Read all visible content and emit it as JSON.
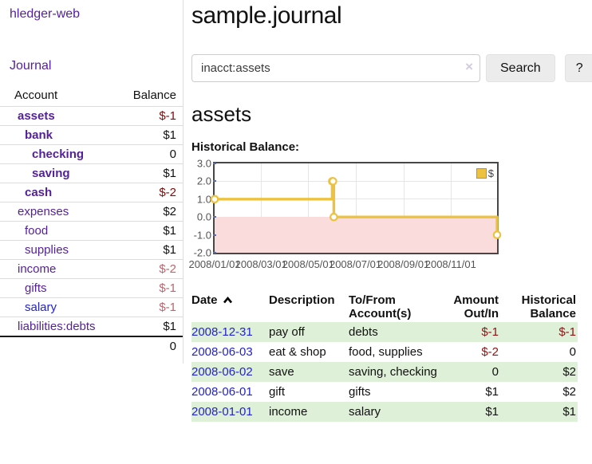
{
  "app": {
    "brand": "hledger-web"
  },
  "sidebar": {
    "journal_link": "Journal",
    "table": {
      "account_header": "Account",
      "balance_header": "Balance",
      "rows": [
        {
          "name": "assets",
          "balance": "$-1"
        },
        {
          "name": "bank",
          "balance": "$1"
        },
        {
          "name": "checking",
          "balance": "0"
        },
        {
          "name": "saving",
          "balance": "$1"
        },
        {
          "name": "cash",
          "balance": "$-2"
        },
        {
          "name": "expenses",
          "balance": "$2"
        },
        {
          "name": "food",
          "balance": "$1"
        },
        {
          "name": "supplies",
          "balance": "$1"
        },
        {
          "name": "income",
          "balance": "$-2"
        },
        {
          "name": "gifts",
          "balance": "$-1"
        },
        {
          "name": "salary",
          "balance": "$-1"
        },
        {
          "name": "liabilities:debts",
          "balance": "$1"
        }
      ],
      "total": "0"
    }
  },
  "main": {
    "title": "sample.journal",
    "search": {
      "value": "inacct:assets",
      "clear_icon": "×",
      "search_button": "Search",
      "help_button": "?"
    },
    "account_heading": "assets",
    "chart_label": "Historical Balance:"
  },
  "chart_data": {
    "type": "line",
    "title": "Historical Balance:",
    "step": true,
    "series": [
      {
        "name": "$",
        "color": "#EDC240",
        "points": [
          [
            "2008-01-01",
            1
          ],
          [
            "2008-06-01",
            2
          ],
          [
            "2008-06-02",
            2
          ],
          [
            "2008-06-03",
            0
          ],
          [
            "2008-12-31",
            -1
          ]
        ]
      }
    ],
    "xrange": [
      "2008-01-01",
      "2008-12-31"
    ],
    "ylim": [
      -2,
      3
    ],
    "yticks": [
      3.0,
      2.0,
      1.0,
      0.0,
      -1.0,
      -2.0
    ],
    "ytick_labels": [
      "3.0",
      "2.0",
      "1.0",
      "0.0",
      "-1.0",
      "-2.0"
    ],
    "xticks": [
      "2008/01/01",
      "2008/03/01",
      "2008/05/01",
      "2008/07/01",
      "2008/09/01",
      "2008/11/01"
    ],
    "grid": true,
    "legend_position": "top-right",
    "negative_region_fill": "#fbdcdc",
    "zero_line_color": "#7b0000"
  },
  "register": {
    "headers": {
      "date": "Date",
      "description": "Description",
      "tofrom": "To/From Account(s)",
      "amount": "Amount Out/In",
      "balance": "Historical Balance"
    },
    "rows": [
      {
        "date": "2008-12-31",
        "description": "pay off",
        "tofrom": "debts",
        "amount": "$-1",
        "balance": "$-1"
      },
      {
        "date": "2008-06-03",
        "description": "eat & shop",
        "tofrom": "food, supplies",
        "amount": "$-2",
        "balance": "0"
      },
      {
        "date": "2008-06-02",
        "description": "save",
        "tofrom": "saving, checking",
        "amount": "0",
        "balance": "$2"
      },
      {
        "date": "2008-06-01",
        "description": "gift",
        "tofrom": "gifts",
        "amount": "$1",
        "balance": "$2"
      },
      {
        "date": "2008-01-01",
        "description": "income",
        "tofrom": "salary",
        "amount": "$1",
        "balance": "$1"
      }
    ]
  },
  "colors": {
    "accent_purple": "#541f9b",
    "link_blue": "#2323cc",
    "negative_dark": "#7e0c0c",
    "negative_muted": "#bb666c",
    "table_negative": "#8b1414",
    "row_green": "#dff0d8",
    "series_gold": "#EDC240",
    "negative_region_pink": "#fbdcdc",
    "zero_line": "#7b0000"
  }
}
